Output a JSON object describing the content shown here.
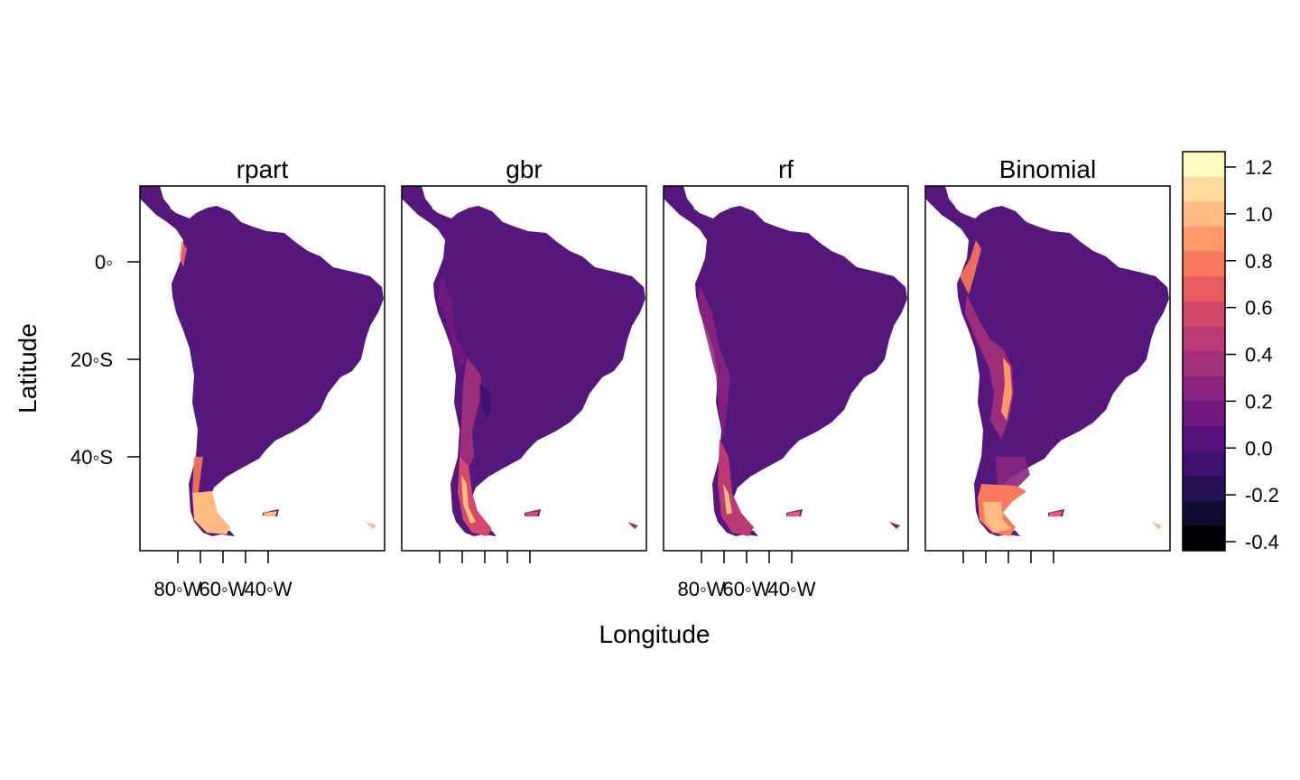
{
  "panels": [
    {
      "title": "rpart",
      "variant": "rpart"
    },
    {
      "title": "gbr",
      "variant": "gbr"
    },
    {
      "title": "rf",
      "variant": "rf"
    },
    {
      "title": "Binomial",
      "variant": "binomial"
    }
  ],
  "axes": {
    "xlabel": "Longitude",
    "ylabel": "Latitude",
    "x_ticks": [
      "80◦W",
      "60◦W",
      "40◦W"
    ],
    "y_ticks": [
      "0◦",
      "20◦S",
      "40◦S"
    ]
  },
  "colorkey": {
    "labels": [
      "1.2",
      "1.0",
      "0.8",
      "0.6",
      "0.4",
      "0.2",
      "0.0",
      "-0.2",
      "-0.4"
    ],
    "colors_top_to_bottom": [
      "#FCFDBF",
      "#FDDB9E",
      "#FEBA80",
      "#FD9969",
      "#F8795D",
      "#EA5C61",
      "#D44A6C",
      "#BB3A74",
      "#A3307B",
      "#8A237F",
      "#72197F",
      "#5A1180",
      "#3F0F72",
      "#251255",
      "#110B31",
      "#000004"
    ],
    "land_base_color": "#56177C",
    "ocean_color": "#ffffff"
  }
}
